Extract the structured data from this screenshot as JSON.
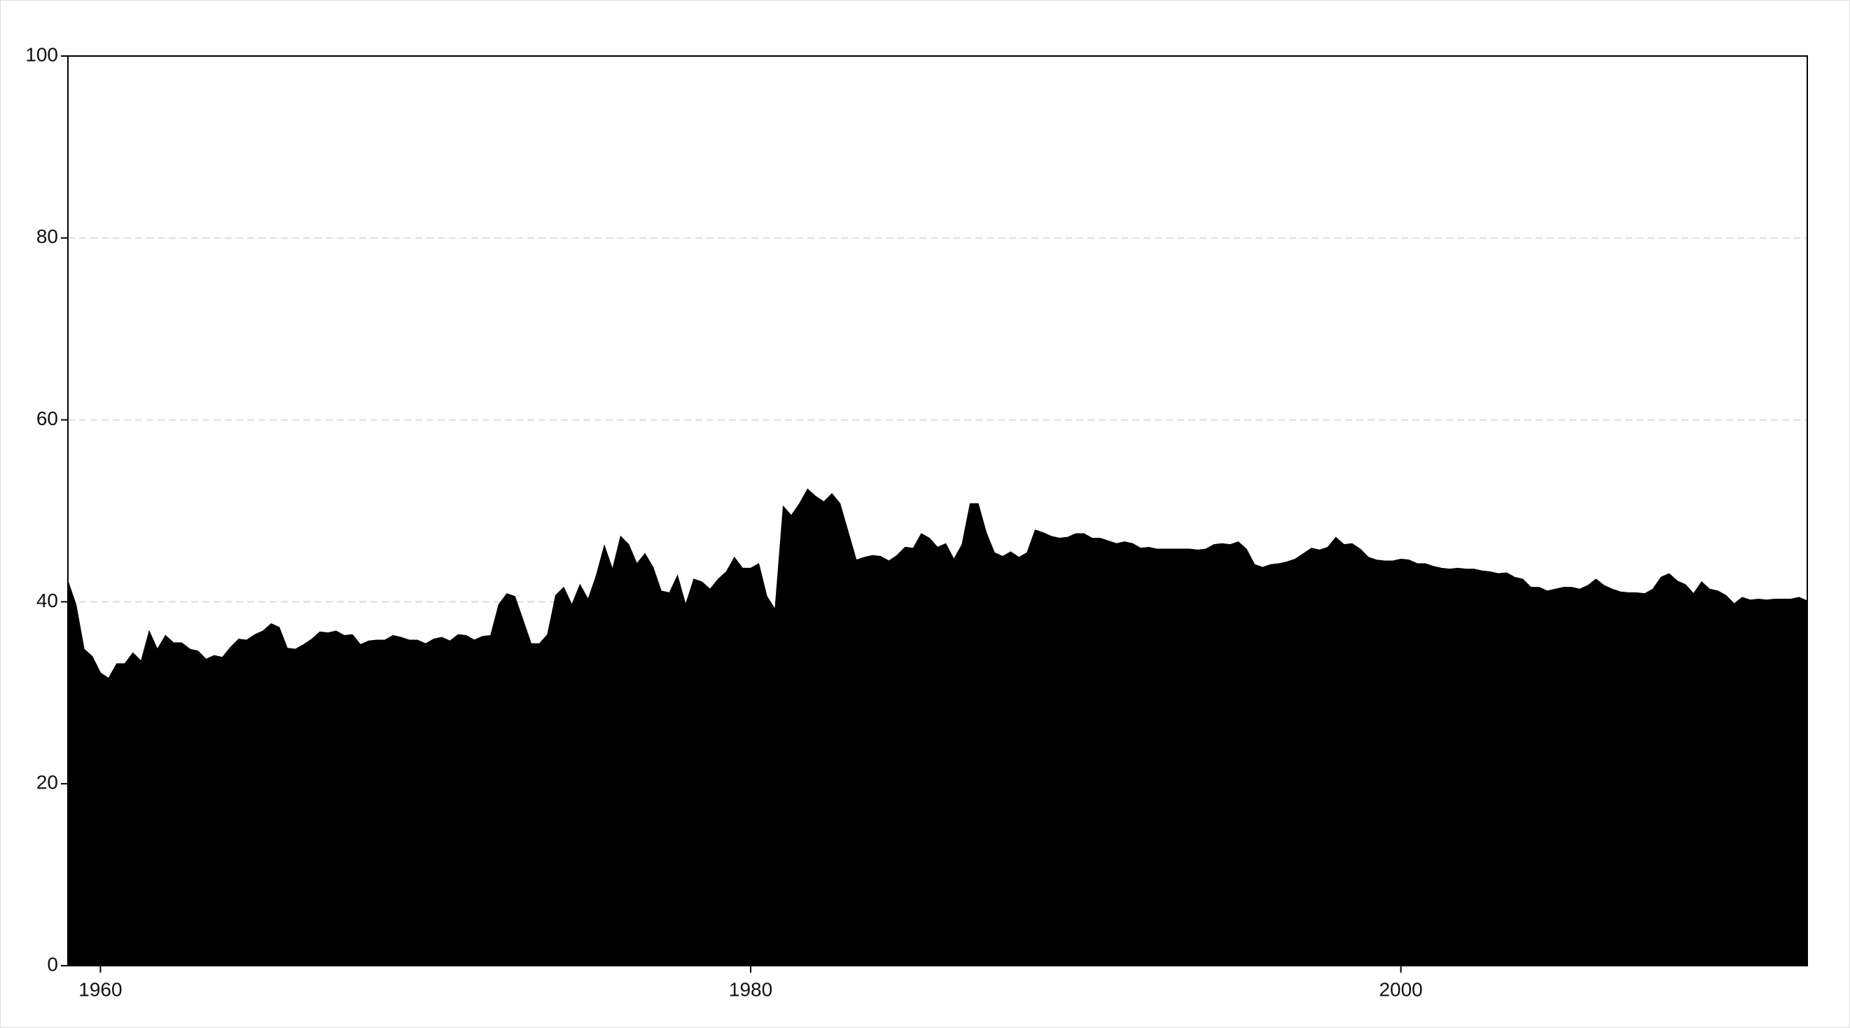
{
  "chart_data": {
    "type": "area",
    "color": "#000000",
    "grid": true,
    "xlim": [
      1959,
      2012.5
    ],
    "xticks": [
      1960,
      1980,
      2000
    ],
    "ylim": [
      0,
      100
    ],
    "yticks": [
      0,
      20,
      40,
      60,
      80,
      100
    ],
    "x": [
      1959,
      1959.25,
      1959.5,
      1959.75,
      1960,
      1960.25,
      1960.5,
      1960.75,
      1961,
      1961.25,
      1961.5,
      1961.75,
      1962,
      1962.25,
      1962.5,
      1962.75,
      1963,
      1963.25,
      1963.5,
      1963.75,
      1964,
      1964.25,
      1964.5,
      1964.75,
      1965,
      1965.25,
      1965.5,
      1965.75,
      1966,
      1966.25,
      1966.5,
      1966.75,
      1967,
      1967.25,
      1967.5,
      1967.75,
      1968,
      1968.25,
      1968.5,
      1968.75,
      1969,
      1969.25,
      1969.5,
      1969.75,
      1970,
      1970.25,
      1970.5,
      1970.75,
      1971,
      1971.25,
      1971.5,
      1971.75,
      1972,
      1972.25,
      1972.5,
      1972.75,
      1973,
      1973.25,
      1973.5,
      1973.75,
      1974,
      1974.25,
      1974.5,
      1974.75,
      1975,
      1975.25,
      1975.5,
      1975.75,
      1976,
      1976.25,
      1976.5,
      1976.75,
      1977,
      1977.25,
      1977.5,
      1977.75,
      1978,
      1978.25,
      1978.5,
      1978.75,
      1979,
      1979.25,
      1979.5,
      1979.75,
      1980,
      1980.25,
      1980.5,
      1980.75,
      1981,
      1981.25,
      1981.5,
      1981.75,
      1982,
      1982.25,
      1982.5,
      1982.75,
      1983,
      1983.25,
      1983.5,
      1983.75,
      1984,
      1984.25,
      1984.5,
      1984.75,
      1985,
      1985.25,
      1985.5,
      1985.75,
      1986,
      1986.25,
      1986.5,
      1986.75,
      1987,
      1987.25,
      1987.5,
      1987.75,
      1988,
      1988.25,
      1988.5,
      1988.75,
      1989,
      1989.25,
      1989.5,
      1989.75,
      1990,
      1990.25,
      1990.5,
      1990.75,
      1991,
      1991.25,
      1991.5,
      1991.75,
      1992,
      1992.25,
      1992.5,
      1992.75,
      1993,
      1993.25,
      1993.5,
      1993.75,
      1994,
      1994.25,
      1994.5,
      1994.75,
      1995,
      1995.25,
      1995.5,
      1995.75,
      1996,
      1996.25,
      1996.5,
      1996.75,
      1997,
      1997.25,
      1997.5,
      1997.75,
      1998,
      1998.25,
      1998.5,
      1998.75,
      1999,
      1999.25,
      1999.5,
      1999.75,
      2000,
      2000.25,
      2000.5,
      2000.75,
      2001,
      2001.25,
      2001.5,
      2001.75,
      2002,
      2002.25,
      2002.5,
      2002.75,
      2003,
      2003.25,
      2003.5,
      2003.75,
      2004,
      2004.25,
      2004.5,
      2004.75,
      2005,
      2005.25,
      2005.5,
      2005.75,
      2006,
      2006.25,
      2006.5,
      2006.75,
      2007,
      2007.25,
      2007.5,
      2007.75,
      2008,
      2008.25,
      2008.5,
      2008.75,
      2009,
      2009.25,
      2009.5,
      2009.75,
      2010,
      2010.25,
      2010.5,
      2010.75,
      2011,
      2011.25,
      2011.5,
      2011.75,
      2012,
      2012.25,
      2012.5
    ],
    "values": [
      42.3,
      39.7,
      34.8,
      34.0,
      32.2,
      31.6,
      33.2,
      33.2,
      34.4,
      33.5,
      36.8,
      34.8,
      36.3,
      35.5,
      35.5,
      34.8,
      34.6,
      33.7,
      34.1,
      33.9,
      35.0,
      35.9,
      35.8,
      36.4,
      36.8,
      37.6,
      37.2,
      34.9,
      34.8,
      35.3,
      35.9,
      36.7,
      36.6,
      36.8,
      36.3,
      36.4,
      35.3,
      35.7,
      35.8,
      35.8,
      36.3,
      36.1,
      35.8,
      35.8,
      35.4,
      35.9,
      36.1,
      35.7,
      36.4,
      36.3,
      35.8,
      36.2,
      36.3,
      39.7,
      40.9,
      40.6,
      38.0,
      35.4,
      35.4,
      36.4,
      40.7,
      41.6,
      39.7,
      41.9,
      40.3,
      42.9,
      46.2,
      43.6,
      47.2,
      46.3,
      44.2,
      45.3,
      43.8,
      41.2,
      41.0,
      42.9,
      39.7,
      42.5,
      42.2,
      41.4,
      42.5,
      43.3,
      44.9,
      43.7,
      43.7,
      44.2,
      40.6,
      39.2,
      50.5,
      49.5,
      50.8,
      52.4,
      51.6,
      51.0,
      51.9,
      50.8,
      47.7,
      44.6,
      44.9,
      45.1,
      45.0,
      44.5,
      45.1,
      46.0,
      45.9,
      47.5,
      47.0,
      46.0,
      46.4,
      44.7,
      46.3,
      50.8,
      50.8,
      47.6,
      45.4,
      45.0,
      45.5,
      44.9,
      45.4,
      47.9,
      47.6,
      47.2,
      47.0,
      47.1,
      47.5,
      47.5,
      47.0,
      47.0,
      46.7,
      46.4,
      46.6,
      46.4,
      45.9,
      46.0,
      45.8,
      45.8,
      45.8,
      45.8,
      45.8,
      45.7,
      45.8,
      46.3,
      46.4,
      46.3,
      46.6,
      45.8,
      44.1,
      43.8,
      44.1,
      44.2,
      44.4,
      44.7,
      45.3,
      45.9,
      45.7,
      46.0,
      47.1,
      46.3,
      46.4,
      45.8,
      44.9,
      44.6,
      44.5,
      44.5,
      44.7,
      44.6,
      44.2,
      44.2,
      43.9,
      43.7,
      43.6,
      43.7,
      43.6,
      43.6,
      43.4,
      43.3,
      43.1,
      43.2,
      42.7,
      42.5,
      41.6,
      41.6,
      41.2,
      41.4,
      41.6,
      41.6,
      41.4,
      41.8,
      42.5,
      41.8,
      41.4,
      41.1,
      41.0,
      41.0,
      40.9,
      41.4,
      42.7,
      43.1,
      42.3,
      41.9,
      40.9,
      42.2,
      41.4,
      41.2,
      40.7,
      39.8,
      40.5,
      40.2,
      40.3,
      40.2,
      40.3,
      40.3,
      40.3,
      40.5,
      40.1
    ]
  }
}
